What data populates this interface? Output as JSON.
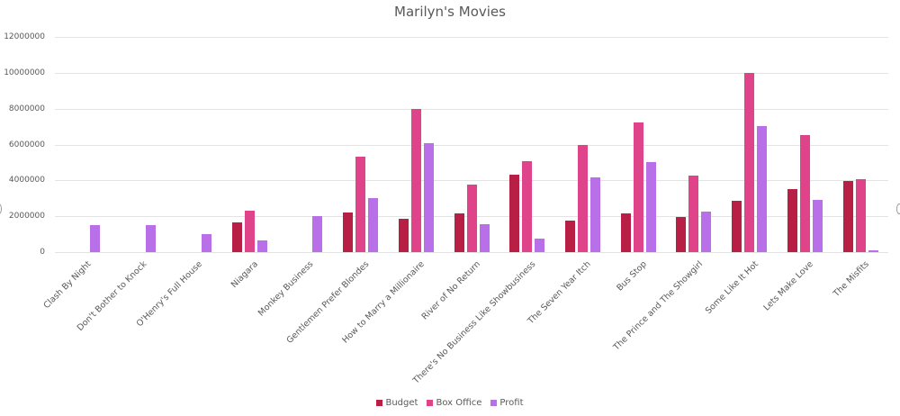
{
  "chart_data": {
    "type": "bar",
    "title": "Marilyn's Movies",
    "xlabel": "",
    "ylabel": "",
    "ylim": [
      0,
      12000000
    ],
    "yticks": [
      0,
      2000000,
      4000000,
      6000000,
      8000000,
      10000000,
      12000000
    ],
    "ytick_labels": [
      "0",
      "2000000",
      "4000000",
      "6000000",
      "8000000",
      "10000000",
      "12000000"
    ],
    "grid": true,
    "legend_position": "bottom",
    "categories": [
      "Clash By Night",
      "Don't Bother to Knock",
      "O'Henry's Full House",
      "Niagara",
      "Monkey Business",
      "Gentlemen Prefer Blondes",
      "How to Marry a Millionaire",
      "River of No Return",
      "There's No Business Like Showbusiness",
      "The Seven Year Itch",
      "Bus Stop",
      "The Prince and The Showgirl",
      "Some Like It Hot",
      "Lets Make Love",
      "The Misfits"
    ],
    "series": [
      {
        "name": "Budget",
        "color": "#b81f45",
        "values": [
          0,
          0,
          0,
          1650000,
          0,
          2200000,
          1850000,
          2150000,
          4320000,
          1780000,
          2150000,
          1960000,
          2880000,
          3530000,
          3970000
        ]
      },
      {
        "name": "Box Office",
        "color": "#df4389",
        "values": [
          0,
          0,
          0,
          2300000,
          0,
          5300000,
          8000000,
          3770000,
          5080000,
          5960000,
          7240000,
          4270000,
          10000000,
          6520000,
          4080000
        ]
      },
      {
        "name": "Profit",
        "color": "#b86fe8",
        "values": [
          1500000,
          1500000,
          1000000,
          650000,
          2000000,
          3000000,
          6070000,
          1570000,
          740000,
          4150000,
          5040000,
          2260000,
          7030000,
          2910000,
          80000
        ]
      }
    ]
  },
  "legend": {
    "items": [
      {
        "label": "Budget",
        "color": "#b81f45"
      },
      {
        "label": "Box Office",
        "color": "#df4389"
      },
      {
        "label": "Profit",
        "color": "#b86fe8"
      }
    ]
  }
}
